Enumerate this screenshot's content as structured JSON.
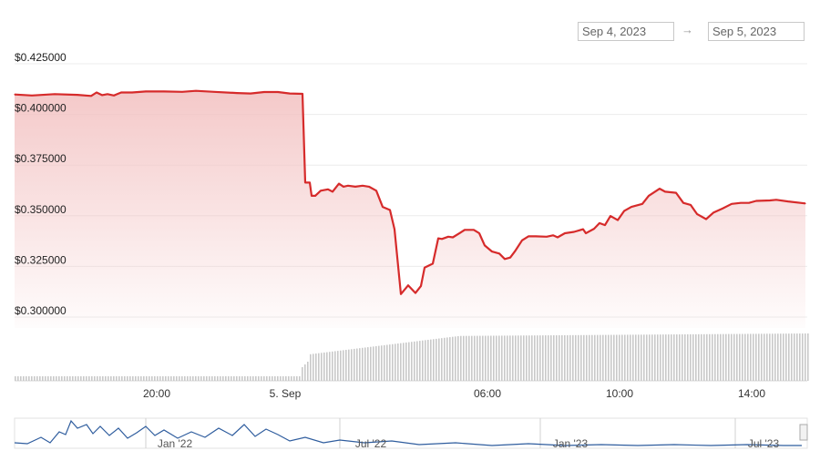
{
  "range_selector": {
    "from": "Sep 4, 2023",
    "arrow": "→",
    "to": "Sep 5, 2023"
  },
  "colors": {
    "line": "#d62b2b",
    "fill_top": "#f3c3c3",
    "volume": "#c9c9c9",
    "grid": "#ececec",
    "navigator_line": "#2f5d9e"
  },
  "chart_data": {
    "type": "line",
    "series": [
      {
        "values": [
          [
            16,
            0.4085
          ],
          [
            35,
            0.408
          ],
          [
            60,
            0.4087
          ],
          [
            85,
            0.4083
          ],
          [
            100,
            0.4078
          ],
          [
            106,
            0.4095
          ],
          [
            112,
            0.4082
          ],
          [
            118,
            0.4087
          ],
          [
            125,
            0.408
          ],
          [
            133,
            0.4095
          ],
          [
            145,
            0.4095
          ],
          [
            160,
            0.41
          ],
          [
            180,
            0.41
          ],
          [
            200,
            0.4098
          ],
          [
            215,
            0.4103
          ],
          [
            235,
            0.4098
          ],
          [
            260,
            0.4092
          ],
          [
            275,
            0.409
          ],
          [
            290,
            0.4097
          ],
          [
            305,
            0.4097
          ],
          [
            318,
            0.409
          ],
          [
            332,
            0.4088
          ],
          [
            335,
            0.365
          ],
          [
            340,
            0.365
          ],
          [
            342,
            0.3585
          ],
          [
            346,
            0.3585
          ],
          [
            352,
            0.361
          ],
          [
            360,
            0.3617
          ],
          [
            365,
            0.3605
          ],
          [
            372,
            0.3645
          ],
          [
            377,
            0.363
          ],
          [
            382,
            0.3635
          ],
          [
            390,
            0.363
          ],
          [
            398,
            0.3635
          ],
          [
            405,
            0.363
          ],
          [
            413,
            0.361
          ],
          [
            420,
            0.353
          ],
          [
            428,
            0.3515
          ],
          [
            433,
            0.342
          ],
          [
            440,
            0.31
          ],
          [
            448,
            0.3143
          ],
          [
            456,
            0.3105
          ],
          [
            462,
            0.314
          ],
          [
            466,
            0.323
          ],
          [
            475,
            0.325
          ],
          [
            481,
            0.3375
          ],
          [
            485,
            0.3372
          ],
          [
            492,
            0.3383
          ],
          [
            497,
            0.338
          ],
          [
            505,
            0.3402
          ],
          [
            510,
            0.3417
          ],
          [
            520,
            0.3417
          ],
          [
            526,
            0.34
          ],
          [
            532,
            0.334
          ],
          [
            540,
            0.331
          ],
          [
            548,
            0.33
          ],
          [
            554,
            0.3273
          ],
          [
            560,
            0.328
          ],
          [
            565,
            0.331
          ],
          [
            573,
            0.3365
          ],
          [
            580,
            0.3385
          ],
          [
            588,
            0.3385
          ],
          [
            600,
            0.3383
          ],
          [
            607,
            0.339
          ],
          [
            612,
            0.338
          ],
          [
            620,
            0.34
          ],
          [
            630,
            0.3407
          ],
          [
            640,
            0.342
          ],
          [
            643,
            0.34
          ],
          [
            652,
            0.3422
          ],
          [
            658,
            0.345
          ],
          [
            664,
            0.344
          ],
          [
            670,
            0.3485
          ],
          [
            678,
            0.3465
          ],
          [
            685,
            0.351
          ],
          [
            693,
            0.353
          ],
          [
            705,
            0.3545
          ],
          [
            712,
            0.3585
          ],
          [
            724,
            0.362
          ],
          [
            730,
            0.3605
          ],
          [
            742,
            0.36
          ],
          [
            750,
            0.355
          ],
          [
            758,
            0.354
          ],
          [
            765,
            0.3495
          ],
          [
            775,
            0.347
          ],
          [
            783,
            0.3502
          ],
          [
            793,
            0.3522
          ],
          [
            803,
            0.3545
          ],
          [
            813,
            0.355
          ],
          [
            822,
            0.355
          ],
          [
            830,
            0.356
          ],
          [
            845,
            0.3562
          ],
          [
            852,
            0.3565
          ],
          [
            865,
            0.3557
          ],
          [
            884,
            0.3547
          ]
        ]
      }
    ],
    "ylim": [
      0.3,
      0.425
    ],
    "y_ticks": [
      "$0.300000",
      "$0.325000",
      "$0.350000",
      "$0.375000",
      "$0.400000",
      "$0.425000"
    ],
    "x_ticks": [
      "20:00",
      "5. Sep",
      "06:00",
      "10:00",
      "14:00"
    ],
    "navigator_ticks": [
      "Jan '22",
      "Jul '22",
      "Jan '23",
      "Jul '23"
    ],
    "volume": {
      "segments": [
        {
          "from_x": 16,
          "to_x": 330,
          "level": 0.1
        },
        {
          "from_x": 330,
          "to_x": 886,
          "level_profile": "rising"
        }
      ]
    },
    "grid": true,
    "legend": "none"
  }
}
